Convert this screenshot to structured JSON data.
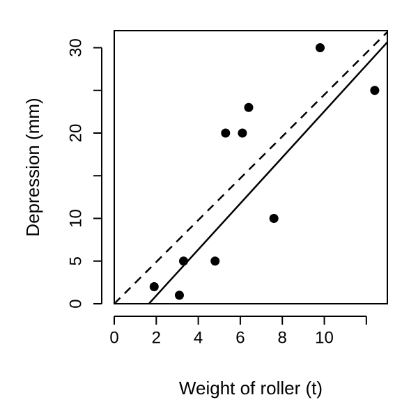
{
  "chart_data": {
    "type": "scatter",
    "title": "",
    "xlabel": "Weight of roller (t)",
    "ylabel": "Depression (mm)",
    "xlim": [
      0,
      13
    ],
    "ylim": [
      0,
      32
    ],
    "x_ticks": [
      0,
      2,
      4,
      6,
      8,
      10,
      12
    ],
    "x_tick_labels": [
      "0",
      "2",
      "4",
      "6",
      "8",
      "10",
      ""
    ],
    "y_ticks": [
      0,
      5,
      10,
      15,
      20,
      25,
      30
    ],
    "y_tick_labels": [
      "0",
      "5",
      "10",
      "",
      "20",
      "",
      "30"
    ],
    "grid": false,
    "series": [
      {
        "x": [
          1.9,
          3.1,
          3.3,
          4.8,
          5.3,
          6.1,
          6.4,
          7.6,
          9.8,
          12.4
        ],
        "y": [
          2,
          1,
          5,
          5,
          20,
          20,
          23,
          10,
          30,
          25
        ]
      }
    ],
    "lines": [
      {
        "style": "dashed",
        "intercept": 0,
        "slope": 2.45
      },
      {
        "style": "solid",
        "intercept": -4.45,
        "slope": 2.7
      }
    ]
  }
}
